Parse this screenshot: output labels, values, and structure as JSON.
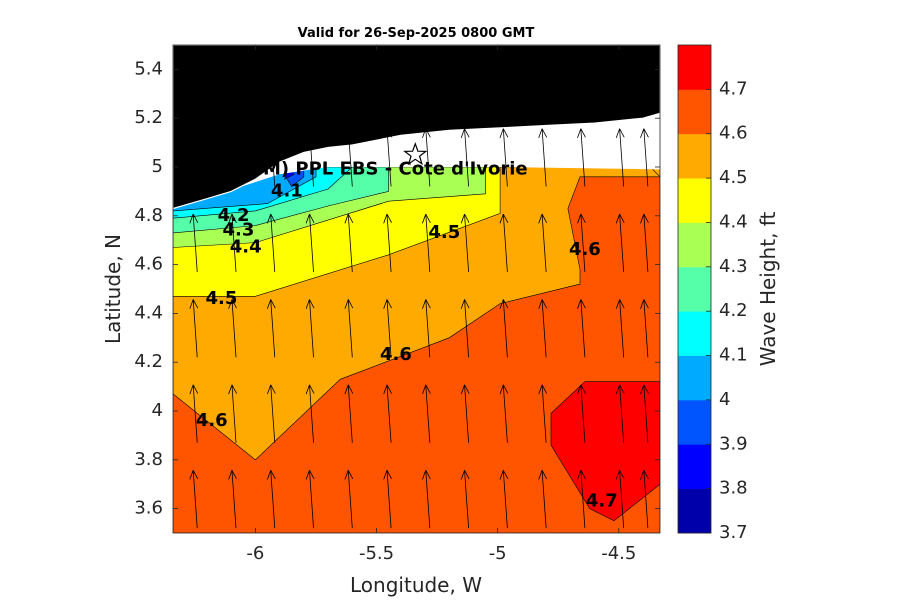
{
  "chart_data": {
    "type": "contour",
    "title": "Valid for 26-Sep-2025 0800 GMT",
    "xlabel": "Longitude, W",
    "ylabel": "Latitude, N",
    "xlim": [
      -6.34,
      -4.33
    ],
    "ylim": [
      3.5,
      5.5
    ],
    "xticks": [
      "-6",
      "-5.5",
      "-5",
      "-4.5"
    ],
    "xtick_values": [
      -6,
      -5.5,
      -5,
      -4.5
    ],
    "yticks": [
      "3.6",
      "3.8",
      "4",
      "4.2",
      "4.4",
      "4.6",
      "4.8",
      "5",
      "5.2",
      "5.4"
    ],
    "ytick_values": [
      3.6,
      3.8,
      4.0,
      4.2,
      4.4,
      4.6,
      4.8,
      5.0,
      5.2,
      5.4
    ],
    "colorbar": {
      "label": "Wave Height, ft",
      "levels": [
        3.7,
        3.8,
        3.9,
        4.0,
        4.1,
        4.2,
        4.3,
        4.4,
        4.5,
        4.6,
        4.7,
        4.8
      ],
      "tick_labels": [
        "3.7",
        "3.8",
        "3.9",
        "4",
        "4.1",
        "4.2",
        "4.3",
        "4.4",
        "4.5",
        "4.6",
        "4.7"
      ],
      "colors": [
        "#0000aa",
        "#0000ff",
        "#0055ff",
        "#00aaff",
        "#00ffff",
        "#55ffaa",
        "#aaff55",
        "#ffff00",
        "#ffaa00",
        "#ff5500",
        "#ff0000"
      ]
    },
    "land_color": "#000000",
    "station": {
      "label": "(ONHYM) PPL EBS  - Cote d'Ivorie",
      "lon": -5.34,
      "lat": 5.05
    },
    "contour_labels": [
      {
        "text": "4.1",
        "lon": -5.87,
        "lat": 4.9
      },
      {
        "text": "4.2",
        "lon": -6.09,
        "lat": 4.8
      },
      {
        "text": "4.3",
        "lon": -6.07,
        "lat": 4.74
      },
      {
        "text": "4.4",
        "lon": -6.04,
        "lat": 4.67
      },
      {
        "text": "4.5",
        "lon": -5.22,
        "lat": 4.73
      },
      {
        "text": "4.5",
        "lon": -6.14,
        "lat": 4.46
      },
      {
        "text": "4.6",
        "lon": -4.64,
        "lat": 4.66
      },
      {
        "text": "4.6",
        "lon": -5.42,
        "lat": 4.23
      },
      {
        "text": "4.6",
        "lon": -6.18,
        "lat": 3.96
      },
      {
        "text": "4.7",
        "lon": -4.57,
        "lat": 3.63
      }
    ],
    "regions": [
      {
        "level": 4.65,
        "polygon": [
          [
            -6.34,
            3.5
          ],
          [
            -4.33,
            3.5
          ],
          [
            -4.33,
            5.0
          ],
          [
            -6.34,
            5.0
          ]
        ]
      },
      {
        "level": 4.55,
        "polygon": [
          [
            -6.34,
            4.07
          ],
          [
            -6.0,
            3.8
          ],
          [
            -5.65,
            4.13
          ],
          [
            -5.2,
            4.3
          ],
          [
            -4.99,
            4.44
          ],
          [
            -4.66,
            4.52
          ],
          [
            -4.66,
            4.58
          ],
          [
            -4.71,
            4.83
          ],
          [
            -4.66,
            4.96
          ],
          [
            -4.33,
            4.96
          ],
          [
            -4.33,
            5.0
          ],
          [
            -6.34,
            5.0
          ]
        ]
      },
      {
        "level": 4.45,
        "polygon": [
          [
            -6.34,
            4.47
          ],
          [
            -6.0,
            4.47
          ],
          [
            -5.45,
            4.64
          ],
          [
            -4.99,
            4.81
          ],
          [
            -4.99,
            5.0
          ],
          [
            -6.34,
            5.0
          ]
        ]
      },
      {
        "level": 4.35,
        "polygon": [
          [
            -6.34,
            4.67
          ],
          [
            -6.0,
            4.69
          ],
          [
            -5.45,
            4.86
          ],
          [
            -5.05,
            4.89
          ],
          [
            -5.05,
            5.0
          ],
          [
            -6.34,
            5.0
          ]
        ]
      },
      {
        "level": 4.25,
        "polygon": [
          [
            -6.34,
            4.73
          ],
          [
            -6.0,
            4.76
          ],
          [
            -5.7,
            4.84
          ],
          [
            -5.45,
            4.9
          ],
          [
            -5.45,
            5.0
          ],
          [
            -6.34,
            5.0
          ]
        ]
      },
      {
        "level": 4.15,
        "polygon": [
          [
            -6.34,
            4.79
          ],
          [
            -6.0,
            4.82
          ],
          [
            -5.7,
            4.91
          ],
          [
            -5.6,
            5.0
          ],
          [
            -6.34,
            5.0
          ]
        ]
      },
      {
        "level": 4.05,
        "polygon": [
          [
            -6.34,
            4.82
          ],
          [
            -5.95,
            4.85
          ],
          [
            -5.75,
            4.96
          ],
          [
            -5.75,
            5.0
          ],
          [
            -6.34,
            5.0
          ]
        ]
      },
      {
        "level": 3.95,
        "polygon": [
          [
            -5.85,
            4.92
          ],
          [
            -5.8,
            4.96
          ],
          [
            -5.8,
            5.0
          ],
          [
            -5.9,
            5.0
          ]
        ]
      },
      {
        "level": 3.85,
        "polygon": [
          [
            -5.88,
            4.95
          ],
          [
            -5.84,
            4.97
          ],
          [
            -5.86,
            5.0
          ]
        ]
      },
      {
        "level": 4.75,
        "polygon": [
          [
            -4.78,
            3.99
          ],
          [
            -4.64,
            4.12
          ],
          [
            -4.33,
            4.12
          ],
          [
            -4.33,
            3.7
          ],
          [
            -4.52,
            3.55
          ],
          [
            -4.62,
            3.6
          ],
          [
            -4.78,
            3.86
          ]
        ]
      },
      {
        "level": 4.55,
        "polygon": [
          [
            -4.33,
            4.96
          ],
          [
            -4.4,
            5.03
          ],
          [
            -4.33,
            5.13
          ]
        ]
      },
      {
        "level": 4.45,
        "polygon": [
          [
            -4.33,
            5.05
          ],
          [
            -4.38,
            5.12
          ],
          [
            -4.33,
            5.18
          ]
        ]
      },
      {
        "level": 4.35,
        "polygon": [
          [
            -4.33,
            5.14
          ],
          [
            -4.36,
            5.18
          ],
          [
            -4.33,
            5.2
          ]
        ]
      }
    ],
    "coast": [
      [
        -6.34,
        4.83
      ],
      [
        -6.2,
        4.87
      ],
      [
        -6.1,
        4.9
      ],
      [
        -6.0,
        4.95
      ],
      [
        -5.9,
        5.02
      ],
      [
        -5.8,
        5.06
      ],
      [
        -5.7,
        5.08
      ],
      [
        -5.6,
        5.09
      ],
      [
        -5.5,
        5.11
      ],
      [
        -5.4,
        5.13
      ],
      [
        -5.3,
        5.14
      ],
      [
        -5.2,
        5.15
      ],
      [
        -5.0,
        5.16
      ],
      [
        -4.8,
        5.17
      ],
      [
        -4.6,
        5.18
      ],
      [
        -4.4,
        5.2
      ],
      [
        -4.33,
        5.22
      ]
    ],
    "arrow_grid": {
      "lons": [
        -6.24,
        -6.08,
        -5.92,
        -5.76,
        -5.6,
        -5.44,
        -5.28,
        -5.12,
        -4.96,
        -4.8,
        -4.64,
        -4.48,
        -4.38
      ],
      "lats": [
        3.52,
        3.87,
        4.22,
        4.57,
        4.92
      ],
      "direction_deg_from_north": -4
    }
  }
}
